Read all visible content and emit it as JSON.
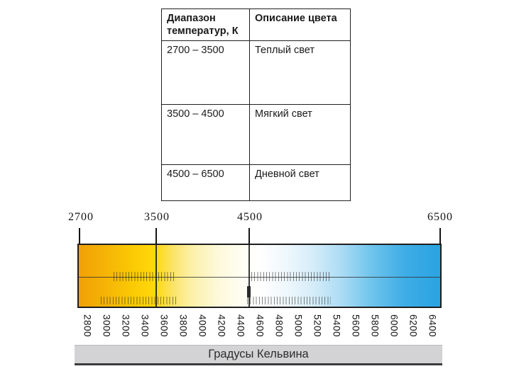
{
  "table": {
    "headers": [
      "Диапазон температур, К",
      "Описание цвета"
    ],
    "rows": [
      {
        "range": "2700 – 3500",
        "description": "Теплый  свет"
      },
      {
        "range": "3500 – 4500",
        "description": "Мягкий свет"
      },
      {
        "range": "4500 – 6500",
        "description": "Дневной свет"
      }
    ]
  },
  "scale": {
    "unit_caption": "Градусы Кельвина",
    "range_k": [
      2700,
      6500
    ],
    "top_labels": [
      "2700",
      "3500",
      "4500",
      "6500"
    ],
    "bottom_labels": [
      "2800",
      "3000",
      "3200",
      "3400",
      "3600",
      "3800",
      "4000",
      "4200",
      "4400",
      "4600",
      "4800",
      "5000",
      "5200",
      "5400",
      "5600",
      "5800",
      "6000",
      "6200",
      "6400"
    ],
    "gradient_stops": [
      {
        "k": 2700,
        "color": "#F2A007"
      },
      {
        "k": 3500,
        "color": "#FFD90A"
      },
      {
        "k": 4000,
        "color": "#FCF0A6"
      },
      {
        "k": 4600,
        "color": "#FFFFFF"
      },
      {
        "k": 5200,
        "color": "#CBE8F8"
      },
      {
        "k": 6000,
        "color": "#3FADE6"
      },
      {
        "k": 6500,
        "color": "#2AA3E1"
      }
    ]
  }
}
